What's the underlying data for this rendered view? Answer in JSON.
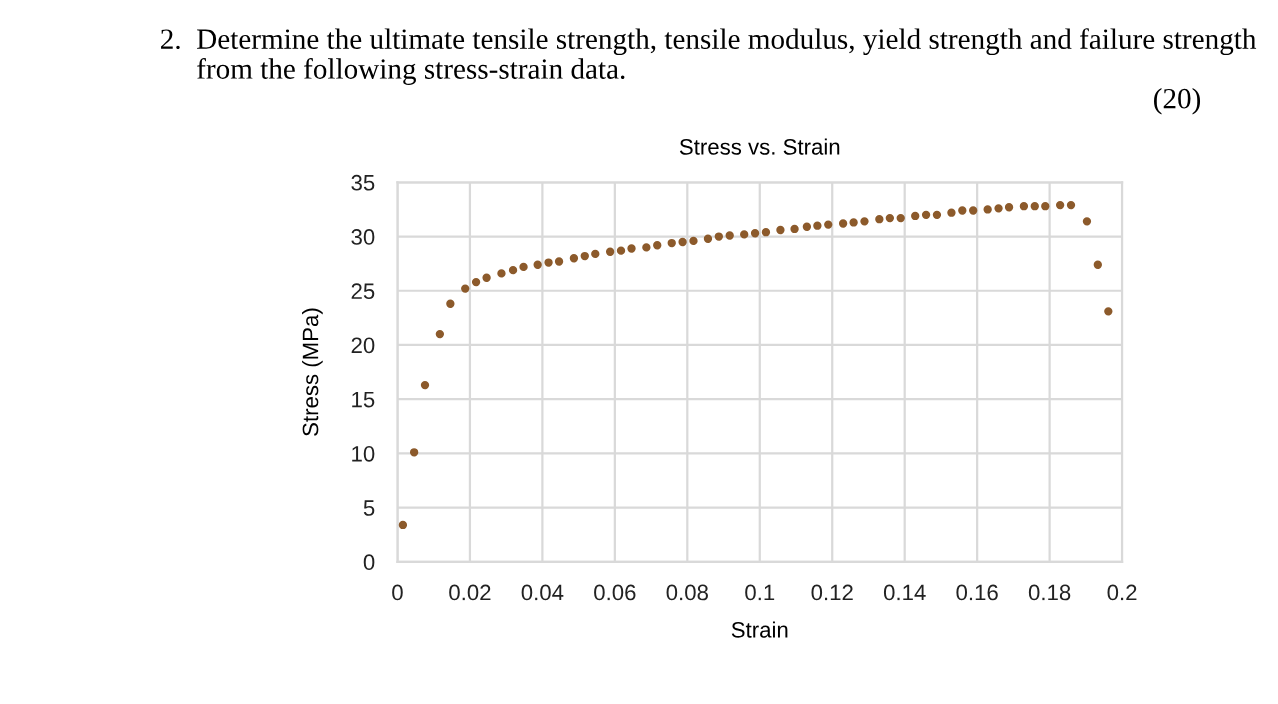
{
  "chart_data": {
    "type": "scatter",
    "title": "Stress vs. Strain",
    "xlabel": "Strain",
    "ylabel": "Stress (MPa)",
    "annotations": [
      "2.  Determine the ultimate tensile strength, tensile modulus, yield strength and failure strength\n     from the following stress-strain data.",
      "(20)"
    ],
    "series": [
      {
        "color": "#8c5a2b",
        "x": [
          0.0015,
          0.0046,
          0.0076,
          0.0117,
          0.0146,
          0.0187,
          0.0217,
          0.0246,
          0.0287,
          0.0319,
          0.0348,
          0.0387,
          0.0417,
          0.0446,
          0.0487,
          0.0517,
          0.0546,
          0.0587,
          0.0617,
          0.0646,
          0.0687,
          0.0717,
          0.0757,
          0.0787,
          0.0817,
          0.0857,
          0.0887,
          0.0917,
          0.0957,
          0.0987,
          0.1017,
          0.1057,
          0.1096,
          0.113,
          0.1159,
          0.1189,
          0.123,
          0.1259,
          0.1289,
          0.133,
          0.1359,
          0.1389,
          0.1429,
          0.1459,
          0.1489,
          0.1529,
          0.1559,
          0.1589,
          0.1629,
          0.1659,
          0.1688,
          0.1729,
          0.1759,
          0.1788,
          0.1829,
          0.1859,
          0.1903,
          0.1933,
          0.1962
        ],
        "values": [
          3.4,
          10.1,
          16.3,
          21.0,
          23.8,
          25.2,
          25.8,
          26.2,
          26.6,
          26.9,
          27.2,
          27.4,
          27.6,
          27.7,
          28.0,
          28.2,
          28.4,
          28.6,
          28.7,
          28.9,
          29.0,
          29.2,
          29.4,
          29.5,
          29.6,
          29.8,
          30.0,
          30.1,
          30.2,
          30.3,
          30.4,
          30.6,
          30.7,
          30.9,
          31.0,
          31.1,
          31.2,
          31.3,
          31.4,
          31.6,
          31.7,
          31.7,
          31.9,
          32.0,
          32.0,
          32.2,
          32.4,
          32.4,
          32.5,
          32.6,
          32.7,
          32.8,
          32.8,
          32.8,
          32.9,
          32.9,
          31.4,
          27.4,
          23.1
        ]
      }
    ],
    "xlim": [
      0,
      0.2
    ],
    "xticks": [
      0,
      0.02,
      0.04,
      0.06,
      0.08,
      0.1,
      0.12,
      0.14,
      0.16,
      0.18,
      0.2
    ],
    "ylim": [
      0,
      35
    ],
    "yticks": [
      0,
      5,
      10,
      15,
      20,
      25,
      30,
      35
    ],
    "grid": true,
    "legend": false,
    "marker": "circle"
  }
}
